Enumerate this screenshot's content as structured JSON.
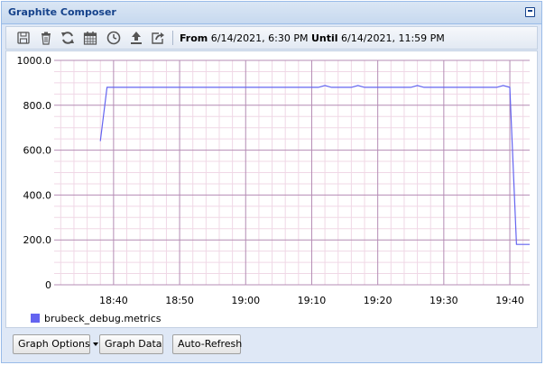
{
  "window": {
    "title": "Graphite Composer"
  },
  "toolbar": {
    "icons": [
      "save-icon",
      "trash-icon",
      "refresh-icon",
      "calendar-icon",
      "clock-icon",
      "upload-icon",
      "share-icon"
    ],
    "from_label": "From",
    "from_value": "6/14/2021, 6:30 PM",
    "until_label": "Until",
    "until_value": "6/14/2021, 11:59 PM"
  },
  "buttons": {
    "graph_options": "Graph Options",
    "graph_data": "Graph Data",
    "auto_refresh": "Auto-Refresh"
  },
  "colors": {
    "series": "#6464f0",
    "minor_grid": "#f0d8e6",
    "major_grid": "#b48cb4",
    "title_text": "#15428b"
  },
  "chart_data": {
    "type": "line",
    "title": "",
    "xlabel": "",
    "ylabel": "",
    "ylim": [
      0,
      1000
    ],
    "y_ticks": [
      "0",
      "200.0",
      "400.0",
      "600.0",
      "800.0",
      "1000.0"
    ],
    "x_range": [
      "18:31",
      "19:43"
    ],
    "x_ticks": [
      "18:40",
      "18:50",
      "19:00",
      "19:10",
      "19:20",
      "19:30",
      "19:40"
    ],
    "grid": true,
    "legend": "bottom-left",
    "series": [
      {
        "name": "brubeck_debug.metrics",
        "color": "#6464f0",
        "x": [
          "18:38",
          "18:39",
          "18:50",
          "19:00",
          "19:10",
          "19:11",
          "19:12",
          "19:13",
          "19:16",
          "19:17",
          "19:18",
          "19:25",
          "19:26",
          "19:27",
          "19:38",
          "19:39",
          "19:40",
          "19:41",
          "19:42",
          "19:43"
        ],
        "y": [
          640,
          880,
          880,
          880,
          880,
          880,
          888,
          880,
          880,
          888,
          880,
          880,
          888,
          880,
          880,
          888,
          880,
          180,
          180,
          180
        ]
      }
    ]
  }
}
